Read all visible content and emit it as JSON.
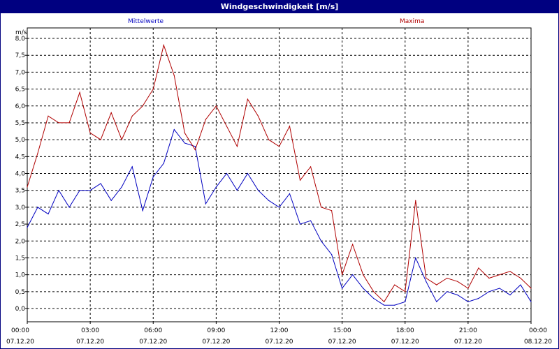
{
  "window": {
    "title": "Windgeschwindigkeit [m/s]"
  },
  "colors": {
    "title_bar": "#000080",
    "mean_series": "#0000c0",
    "max_series": "#b00000",
    "grid": "#000000",
    "background": "#ffffff"
  },
  "chart_data": {
    "type": "line",
    "ylabel": "m/s",
    "ylim": [
      0,
      8
    ],
    "ytick_labels": [
      "0,0",
      "0,5",
      "1,0",
      "1,5",
      "2,0",
      "2,5",
      "3,0",
      "3,5",
      "4,0",
      "4,5",
      "5,0",
      "5,5",
      "6,0",
      "6,5",
      "7,0",
      "7,5",
      "8,0"
    ],
    "xlim": [
      "07.12.20 00:00",
      "08.12.20 00:00"
    ],
    "xticks": [
      {
        "time": "00:00",
        "date": "07.12.20"
      },
      {
        "time": "03:00",
        "date": "07.12.20"
      },
      {
        "time": "06:00",
        "date": "07.12.20"
      },
      {
        "time": "09:00",
        "date": "07.12.20"
      },
      {
        "time": "12:00",
        "date": "07.12.20"
      },
      {
        "time": "15:00",
        "date": "07.12.20"
      },
      {
        "time": "18:00",
        "date": "07.12.20"
      },
      {
        "time": "21:00",
        "date": "07.12.20"
      },
      {
        "time": "00:00",
        "date": "08.12.20"
      }
    ],
    "grid": true,
    "series": [
      {
        "name": "Mittelwerte",
        "color": "#0000c0",
        "x": [
          "00:00",
          "00:30",
          "01:00",
          "01:30",
          "02:00",
          "02:30",
          "03:00",
          "03:30",
          "04:00",
          "04:30",
          "05:00",
          "05:30",
          "06:00",
          "06:30",
          "07:00",
          "07:30",
          "08:00",
          "08:30",
          "09:00",
          "09:30",
          "10:00",
          "10:30",
          "11:00",
          "11:30",
          "12:00",
          "12:30",
          "13:00",
          "13:30",
          "14:00",
          "14:30",
          "15:00",
          "15:30",
          "16:00",
          "16:30",
          "17:00",
          "17:30",
          "18:00",
          "18:30",
          "19:00",
          "19:30",
          "20:00",
          "20:30",
          "21:00",
          "21:30",
          "22:00",
          "22:30",
          "23:00",
          "23:30",
          "24:00"
        ],
        "values": [
          2.4,
          3.0,
          2.8,
          3.5,
          3.0,
          3.5,
          3.5,
          3.7,
          3.2,
          3.6,
          4.2,
          2.9,
          3.9,
          4.3,
          5.3,
          4.9,
          4.8,
          3.1,
          3.6,
          4.0,
          3.5,
          4.0,
          3.5,
          3.2,
          3.0,
          3.4,
          2.5,
          2.6,
          2.0,
          1.6,
          0.6,
          1.0,
          0.6,
          0.3,
          0.1,
          0.1,
          0.2,
          1.5,
          0.8,
          0.2,
          0.5,
          0.4,
          0.2,
          0.3,
          0.5,
          0.6,
          0.4,
          0.7,
          0.2
        ]
      },
      {
        "name": "Maxima",
        "color": "#b00000",
        "x": [
          "00:00",
          "00:30",
          "01:00",
          "01:30",
          "02:00",
          "02:30",
          "03:00",
          "03:30",
          "04:00",
          "04:30",
          "05:00",
          "05:30",
          "06:00",
          "06:30",
          "07:00",
          "07:30",
          "08:00",
          "08:30",
          "09:00",
          "09:30",
          "10:00",
          "10:30",
          "11:00",
          "11:30",
          "12:00",
          "12:30",
          "13:00",
          "13:30",
          "14:00",
          "14:30",
          "15:00",
          "15:30",
          "16:00",
          "16:30",
          "17:00",
          "17:30",
          "18:00",
          "18:30",
          "19:00",
          "19:30",
          "20:00",
          "20:30",
          "21:00",
          "21:30",
          "22:00",
          "22:30",
          "23:00",
          "23:30",
          "24:00"
        ],
        "values": [
          3.6,
          4.6,
          5.7,
          5.5,
          5.5,
          6.4,
          5.2,
          5.0,
          5.8,
          5.0,
          5.7,
          6.0,
          6.5,
          7.8,
          6.9,
          5.2,
          4.7,
          5.6,
          6.0,
          5.4,
          4.8,
          6.2,
          5.7,
          5.0,
          4.8,
          5.4,
          3.8,
          4.2,
          3.0,
          2.9,
          1.0,
          1.9,
          1.0,
          0.5,
          0.2,
          0.7,
          0.5,
          3.2,
          0.9,
          0.7,
          0.9,
          0.8,
          0.6,
          1.2,
          0.9,
          1.0,
          1.1,
          0.9,
          0.6
        ]
      }
    ]
  }
}
